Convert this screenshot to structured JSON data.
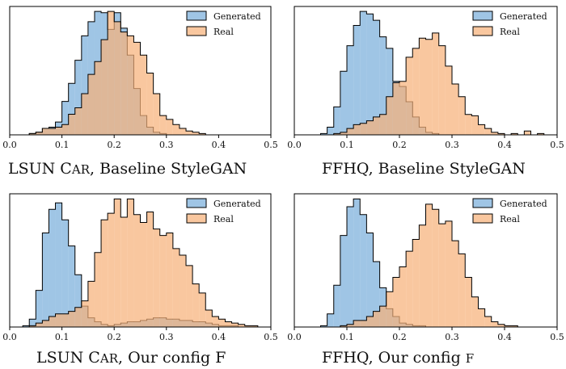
{
  "chart_data": [
    {
      "type": "histogram",
      "caption": {
        "main": "LSUN C",
        "smallcaps": "AR",
        "rest": ", Baseline StyleGAN"
      },
      "xlim": [
        0.0,
        0.5
      ],
      "xticks": [
        "0.0",
        "0.1",
        "0.2",
        "0.3",
        "0.4",
        "0.5"
      ],
      "legend": {
        "placement": "upper-right"
      },
      "bin_width": 0.0125,
      "series": [
        {
          "name": "Generated",
          "color": "#7aaedb",
          "bin_start": 0.025,
          "values": [
            0,
            1,
            2,
            5,
            6,
            10,
            26,
            40,
            58,
            77,
            88,
            96,
            95,
            82,
            95,
            83,
            62,
            36,
            15,
            6,
            2,
            1,
            0,
            0,
            0,
            0,
            0,
            0
          ]
        },
        {
          "name": "Real",
          "color": "#f7b27a",
          "bin_start": 0.025,
          "values": [
            0,
            1,
            2,
            5,
            5,
            6,
            8,
            16,
            21,
            32,
            47,
            57,
            74,
            96,
            88,
            80,
            77,
            72,
            62,
            48,
            32,
            15,
            12,
            8,
            5,
            3,
            2,
            1
          ]
        }
      ]
    },
    {
      "type": "histogram",
      "caption": {
        "main": "FFHQ, Baseline StyleGAN",
        "smallcaps": "",
        "rest": ""
      },
      "xlim": [
        0.0,
        0.5
      ],
      "xticks": [
        "0.0",
        "0.1",
        "0.2",
        "0.3",
        "0.4",
        "0.5"
      ],
      "legend": {
        "placement": "upper-right"
      },
      "bin_width": 0.0125,
      "series": [
        {
          "name": "Generated",
          "color": "#7aaedb",
          "bin_start": 0.05,
          "values": [
            1,
            6,
            22,
            50,
            70,
            86,
            97,
            95,
            90,
            77,
            68,
            42,
            38,
            26,
            14,
            6,
            2,
            1,
            0,
            0,
            0,
            0,
            0,
            0,
            0,
            0,
            0,
            0,
            0,
            0,
            0,
            0,
            0,
            0
          ]
        },
        {
          "name": "Real",
          "color": "#f7b27a",
          "bin_start": 0.05,
          "values": [
            0,
            0,
            1,
            2,
            5,
            8,
            9,
            11,
            14,
            16,
            30,
            41,
            42,
            61,
            68,
            76,
            75,
            80,
            70,
            54,
            40,
            30,
            16,
            15,
            8,
            5,
            2,
            1,
            0,
            1,
            0,
            3,
            0,
            1
          ]
        }
      ]
    },
    {
      "type": "histogram",
      "caption": {
        "main": "LSUN C",
        "smallcaps": "AR",
        "rest": ", Our config F"
      },
      "xlim": [
        0.0,
        0.5
      ],
      "xticks": [
        "0.0",
        "0.1",
        "0.2",
        "0.3",
        "0.4",
        "0.5"
      ],
      "legend": {
        "placement": "upper-right"
      },
      "bin_width": 0.0125,
      "series": [
        {
          "name": "Generated",
          "color": "#7aaedb",
          "bin_start": 0.025,
          "values": [
            1,
            6,
            28,
            72,
            90,
            95,
            82,
            62,
            40,
            16,
            7,
            4,
            2,
            1,
            2,
            3,
            4,
            4,
            5,
            6,
            7,
            7,
            6,
            6,
            5,
            5,
            4,
            4,
            3,
            2,
            1,
            1,
            1,
            0,
            0,
            0
          ]
        },
        {
          "name": "Real",
          "color": "#f7b27a",
          "bin_start": 0.025,
          "values": [
            0,
            1,
            3,
            5,
            8,
            10,
            10,
            12,
            15,
            20,
            35,
            57,
            82,
            87,
            98,
            84,
            98,
            86,
            80,
            88,
            75,
            70,
            72,
            60,
            55,
            47,
            33,
            26,
            13,
            8,
            6,
            4,
            3,
            2,
            1,
            1
          ]
        }
      ]
    },
    {
      "type": "histogram",
      "caption": {
        "main": "FFHQ, Our config ",
        "smallcaps": "F",
        "rest": ""
      },
      "xlim": [
        0.0,
        0.5
      ],
      "xticks": [
        "0.0",
        "0.1",
        "0.2",
        "0.3",
        "0.4",
        "0.5"
      ],
      "legend": {
        "placement": "upper-right"
      },
      "bin_width": 0.0125,
      "series": [
        {
          "name": "Generated",
          "color": "#7aaedb",
          "bin_start": 0.05,
          "values": [
            1,
            10,
            32,
            70,
            92,
            98,
            86,
            72,
            50,
            30,
            14,
            8,
            3,
            2,
            1,
            1,
            0,
            0,
            0,
            0,
            0,
            0,
            0,
            0,
            0,
            0,
            0,
            0,
            0,
            0,
            0,
            0,
            0,
            0
          ]
        },
        {
          "name": "Real",
          "color": "#f7b27a",
          "bin_start": 0.05,
          "values": [
            0,
            0,
            0,
            1,
            2,
            5,
            5,
            8,
            12,
            16,
            27,
            38,
            46,
            58,
            67,
            78,
            94,
            90,
            79,
            81,
            66,
            56,
            38,
            23,
            14,
            8,
            4,
            2,
            1,
            1,
            0,
            0,
            0,
            0
          ]
        }
      ]
    }
  ]
}
